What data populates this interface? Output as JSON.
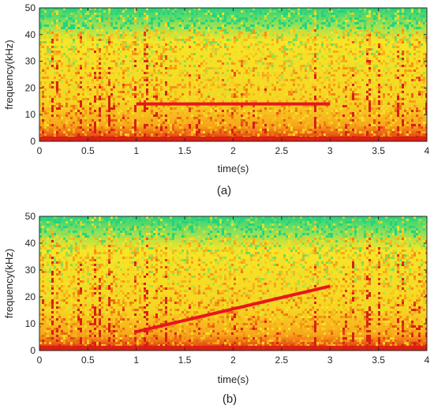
{
  "colors": {
    "axis": "#262626",
    "chirp_line": "#e8161e",
    "spectrogram_low": "#d81f12",
    "spectrogram_mid": "#f7e626",
    "spectrogram_high": "#23d37f"
  },
  "chart_data": [
    {
      "type": "heatmap",
      "caption": "(a)",
      "xlabel": "time(s)",
      "ylabel": "frequency(kHz)",
      "xlim": [
        0,
        4
      ],
      "ylim": [
        0,
        50
      ],
      "xticks": [
        0,
        0.5,
        1,
        1.5,
        2,
        2.5,
        3,
        3.5,
        4
      ],
      "xtick_labels": [
        "0",
        "0.5",
        "1",
        "1.5",
        "2",
        "2.5",
        "3",
        "3.5",
        "4"
      ],
      "yticks": [
        0,
        10,
        20,
        30,
        40,
        50
      ],
      "ytick_labels": [
        "0",
        "10",
        "20",
        "30",
        "40",
        "50"
      ],
      "grid": false,
      "colormap": "jet",
      "overlay": {
        "type": "line",
        "x": [
          1,
          3
        ],
        "y": [
          14,
          14
        ]
      }
    },
    {
      "type": "heatmap",
      "caption": "(b)",
      "xlabel": "time(s)",
      "ylabel": "frequency(kHz)",
      "xlim": [
        0,
        4
      ],
      "ylim": [
        0,
        50
      ],
      "xticks": [
        0,
        0.5,
        1,
        1.5,
        2,
        2.5,
        3,
        3.5,
        4
      ],
      "xtick_labels": [
        "0",
        "0.5",
        "1",
        "1.5",
        "2",
        "2.5",
        "3",
        "3.5",
        "4"
      ],
      "yticks": [
        0,
        10,
        20,
        30,
        40,
        50
      ],
      "ytick_labels": [
        "0",
        "10",
        "20",
        "30",
        "40",
        "50"
      ],
      "grid": false,
      "colormap": "jet",
      "overlay": {
        "type": "line",
        "x": [
          1,
          3
        ],
        "y": [
          7,
          24
        ]
      }
    }
  ]
}
